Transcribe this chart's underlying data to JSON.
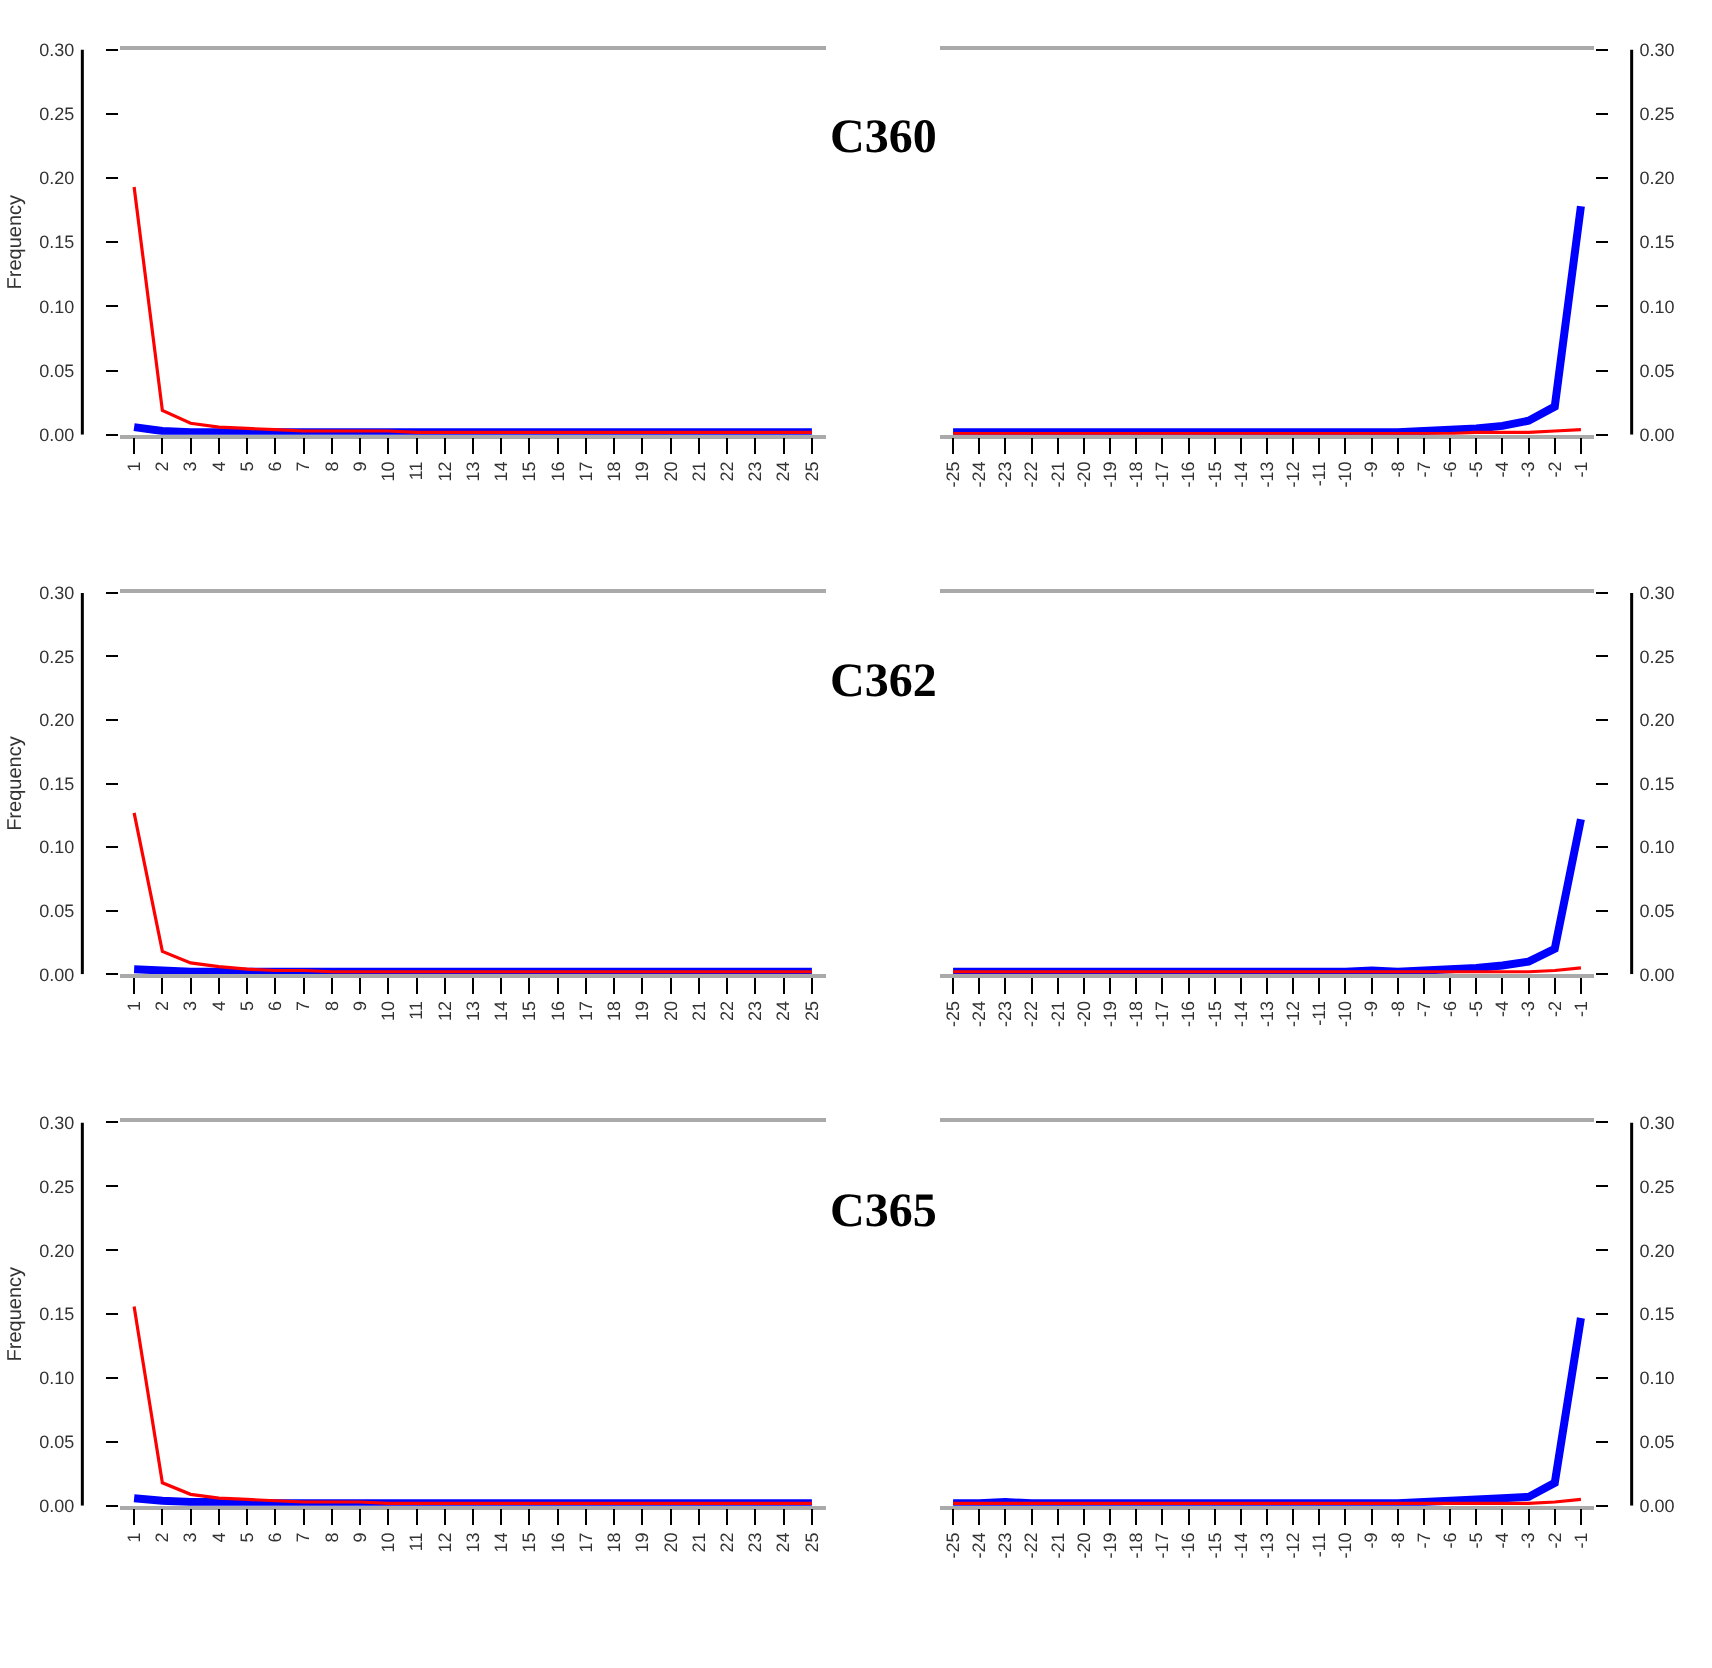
{
  "chart_data": [
    {
      "type": "line",
      "title": "C360",
      "ylabel": "Frequency",
      "categories": [
        "1",
        "2",
        "3",
        "4",
        "5",
        "6",
        "7",
        "8",
        "9",
        "10",
        "11",
        "12",
        "13",
        "14",
        "15",
        "16",
        "17",
        "18",
        "19",
        "20",
        "21",
        "22",
        "23",
        "24",
        "25"
      ],
      "ylim": [
        0,
        0.3
      ],
      "yticks": [
        {
          "value": 0,
          "label": "0.00"
        },
        {
          "value": 0.05,
          "label": "0.05"
        },
        {
          "value": 0.1,
          "label": "0.10"
        },
        {
          "value": 0.15,
          "label": "0.15"
        },
        {
          "value": 0.2,
          "label": "0.20"
        },
        {
          "value": 0.25,
          "label": "0.25"
        },
        {
          "value": 0.3,
          "label": "0.30"
        }
      ],
      "series": [
        {
          "color": "#0000ff",
          "values": [
            0.006,
            0.003,
            0.002,
            0.002,
            0.002,
            0.002,
            0.002,
            0.002,
            0.002,
            0.002,
            0.002,
            0.002,
            0.002,
            0.002,
            0.002,
            0.002,
            0.002,
            0.002,
            0.002,
            0.002,
            0.002,
            0.002,
            0.002,
            0.002,
            0.002
          ]
        },
        {
          "color": "#ff0000",
          "values": [
            0.193,
            0.019,
            0.009,
            0.006,
            0.005,
            0.004,
            0.003,
            0.003,
            0.003,
            0.003,
            0.002,
            0.002,
            0.002,
            0.002,
            0.002,
            0.002,
            0.002,
            0.002,
            0.002,
            0.002,
            0.002,
            0.002,
            0.002,
            0.002,
            0.002
          ]
        }
      ]
    },
    {
      "type": "line",
      "categories": [
        "-25",
        "-24",
        "-23",
        "-22",
        "-21",
        "-20",
        "-19",
        "-18",
        "-17",
        "-16",
        "-15",
        "-14",
        "-13",
        "-12",
        "-11",
        "-10",
        "-9",
        "-8",
        "-7",
        "-6",
        "-5",
        "-4",
        "-3",
        "-2",
        "-1"
      ],
      "ylim": [
        0,
        0.3
      ],
      "yticks": [
        {
          "value": 0,
          "label": "0.00"
        },
        {
          "value": 0.05,
          "label": "0.05"
        },
        {
          "value": 0.1,
          "label": "0.10"
        },
        {
          "value": 0.15,
          "label": "0.15"
        },
        {
          "value": 0.2,
          "label": "0.20"
        },
        {
          "value": 0.25,
          "label": "0.25"
        },
        {
          "value": 0.3,
          "label": "0.30"
        }
      ],
      "series": [
        {
          "color": "#0000ff",
          "values": [
            0.002,
            0.002,
            0.002,
            0.002,
            0.002,
            0.002,
            0.002,
            0.002,
            0.002,
            0.002,
            0.002,
            0.002,
            0.002,
            0.002,
            0.002,
            0.002,
            0.002,
            0.002,
            0.003,
            0.004,
            0.005,
            0.007,
            0.011,
            0.022,
            0.178
          ]
        },
        {
          "color": "#ff0000",
          "values": [
            0.001,
            0.001,
            0.001,
            0.001,
            0.001,
            0.001,
            0.001,
            0.001,
            0.001,
            0.001,
            0.001,
            0.001,
            0.001,
            0.001,
            0.001,
            0.001,
            0.001,
            0.001,
            0.001,
            0.001,
            0.002,
            0.002,
            0.002,
            0.003,
            0.004
          ]
        }
      ]
    },
    {
      "type": "line",
      "title": "C362",
      "ylabel": "Frequency",
      "categories": [
        "1",
        "2",
        "3",
        "4",
        "5",
        "6",
        "7",
        "8",
        "9",
        "10",
        "11",
        "12",
        "13",
        "14",
        "15",
        "16",
        "17",
        "18",
        "19",
        "20",
        "21",
        "22",
        "23",
        "24",
        "25"
      ],
      "ylim": [
        0,
        0.3
      ],
      "yticks": [
        {
          "value": 0,
          "label": "0.00"
        },
        {
          "value": 0.05,
          "label": "0.05"
        },
        {
          "value": 0.1,
          "label": "0.10"
        },
        {
          "value": 0.15,
          "label": "0.15"
        },
        {
          "value": 0.2,
          "label": "0.20"
        },
        {
          "value": 0.25,
          "label": "0.25"
        },
        {
          "value": 0.3,
          "label": "0.30"
        }
      ],
      "series": [
        {
          "color": "#0000ff",
          "values": [
            0.004,
            0.003,
            0.002,
            0.002,
            0.002,
            0.002,
            0.002,
            0.002,
            0.002,
            0.002,
            0.002,
            0.002,
            0.002,
            0.002,
            0.002,
            0.002,
            0.002,
            0.002,
            0.002,
            0.002,
            0.002,
            0.002,
            0.002,
            0.002,
            0.002
          ]
        },
        {
          "color": "#ff0000",
          "values": [
            0.127,
            0.018,
            0.009,
            0.006,
            0.004,
            0.003,
            0.003,
            0.002,
            0.002,
            0.002,
            0.002,
            0.002,
            0.002,
            0.002,
            0.002,
            0.002,
            0.002,
            0.002,
            0.002,
            0.002,
            0.002,
            0.002,
            0.002,
            0.002,
            0.002
          ]
        }
      ]
    },
    {
      "type": "line",
      "categories": [
        "-25",
        "-24",
        "-23",
        "-22",
        "-21",
        "-20",
        "-19",
        "-18",
        "-17",
        "-16",
        "-15",
        "-14",
        "-13",
        "-12",
        "-11",
        "-10",
        "-9",
        "-8",
        "-7",
        "-6",
        "-5",
        "-4",
        "-3",
        "-2",
        "-1"
      ],
      "ylim": [
        0,
        0.3
      ],
      "yticks": [
        {
          "value": 0,
          "label": "0.00"
        },
        {
          "value": 0.05,
          "label": "0.05"
        },
        {
          "value": 0.1,
          "label": "0.10"
        },
        {
          "value": 0.15,
          "label": "0.15"
        },
        {
          "value": 0.2,
          "label": "0.20"
        },
        {
          "value": 0.25,
          "label": "0.25"
        },
        {
          "value": 0.3,
          "label": "0.30"
        }
      ],
      "series": [
        {
          "color": "#0000ff",
          "values": [
            0.002,
            0.002,
            0.002,
            0.002,
            0.002,
            0.002,
            0.002,
            0.002,
            0.002,
            0.002,
            0.002,
            0.002,
            0.002,
            0.002,
            0.002,
            0.002,
            0.003,
            0.002,
            0.003,
            0.004,
            0.005,
            0.007,
            0.01,
            0.02,
            0.122
          ]
        },
        {
          "color": "#ff0000",
          "values": [
            0.002,
            0.002,
            0.002,
            0.002,
            0.002,
            0.002,
            0.002,
            0.002,
            0.002,
            0.002,
            0.002,
            0.002,
            0.002,
            0.002,
            0.002,
            0.002,
            0.002,
            0.002,
            0.002,
            0.002,
            0.002,
            0.002,
            0.002,
            0.003,
            0.005
          ]
        }
      ]
    },
    {
      "type": "line",
      "title": "C365",
      "ylabel": "Frequency",
      "categories": [
        "1",
        "2",
        "3",
        "4",
        "5",
        "6",
        "7",
        "8",
        "9",
        "10",
        "11",
        "12",
        "13",
        "14",
        "15",
        "16",
        "17",
        "18",
        "19",
        "20",
        "21",
        "22",
        "23",
        "24",
        "25"
      ],
      "ylim": [
        0,
        0.3
      ],
      "yticks": [
        {
          "value": 0,
          "label": "0.00"
        },
        {
          "value": 0.05,
          "label": "0.05"
        },
        {
          "value": 0.1,
          "label": "0.10"
        },
        {
          "value": 0.15,
          "label": "0.15"
        },
        {
          "value": 0.2,
          "label": "0.20"
        },
        {
          "value": 0.25,
          "label": "0.25"
        },
        {
          "value": 0.3,
          "label": "0.30"
        }
      ],
      "series": [
        {
          "color": "#0000ff",
          "values": [
            0.006,
            0.004,
            0.003,
            0.003,
            0.002,
            0.002,
            0.002,
            0.002,
            0.002,
            0.002,
            0.002,
            0.002,
            0.002,
            0.002,
            0.002,
            0.002,
            0.002,
            0.002,
            0.002,
            0.002,
            0.002,
            0.002,
            0.002,
            0.002,
            0.002
          ]
        },
        {
          "color": "#ff0000",
          "values": [
            0.156,
            0.018,
            0.009,
            0.006,
            0.005,
            0.004,
            0.003,
            0.003,
            0.003,
            0.002,
            0.002,
            0.002,
            0.002,
            0.002,
            0.002,
            0.002,
            0.002,
            0.002,
            0.002,
            0.002,
            0.002,
            0.002,
            0.002,
            0.002,
            0.002
          ]
        }
      ]
    },
    {
      "type": "line",
      "categories": [
        "-25",
        "-24",
        "-23",
        "-22",
        "-21",
        "-20",
        "-19",
        "-18",
        "-17",
        "-16",
        "-15",
        "-14",
        "-13",
        "-12",
        "-11",
        "-10",
        "-9",
        "-8",
        "-7",
        "-6",
        "-5",
        "-4",
        "-3",
        "-2",
        "-1"
      ],
      "ylim": [
        0,
        0.3
      ],
      "yticks": [
        {
          "value": 0,
          "label": "0.00"
        },
        {
          "value": 0.05,
          "label": "0.05"
        },
        {
          "value": 0.1,
          "label": "0.10"
        },
        {
          "value": 0.15,
          "label": "0.15"
        },
        {
          "value": 0.2,
          "label": "0.20"
        },
        {
          "value": 0.25,
          "label": "0.25"
        },
        {
          "value": 0.3,
          "label": "0.30"
        }
      ],
      "series": [
        {
          "color": "#0000ff",
          "values": [
            0.002,
            0.002,
            0.003,
            0.002,
            0.002,
            0.002,
            0.002,
            0.002,
            0.002,
            0.002,
            0.002,
            0.002,
            0.002,
            0.002,
            0.002,
            0.002,
            0.002,
            0.002,
            0.003,
            0.004,
            0.005,
            0.006,
            0.007,
            0.018,
            0.147
          ]
        },
        {
          "color": "#ff0000",
          "values": [
            0.002,
            0.002,
            0.002,
            0.002,
            0.002,
            0.002,
            0.002,
            0.002,
            0.002,
            0.002,
            0.002,
            0.002,
            0.002,
            0.002,
            0.002,
            0.002,
            0.002,
            0.002,
            0.002,
            0.002,
            0.002,
            0.002,
            0.002,
            0.003,
            0.005
          ]
        }
      ]
    }
  ]
}
